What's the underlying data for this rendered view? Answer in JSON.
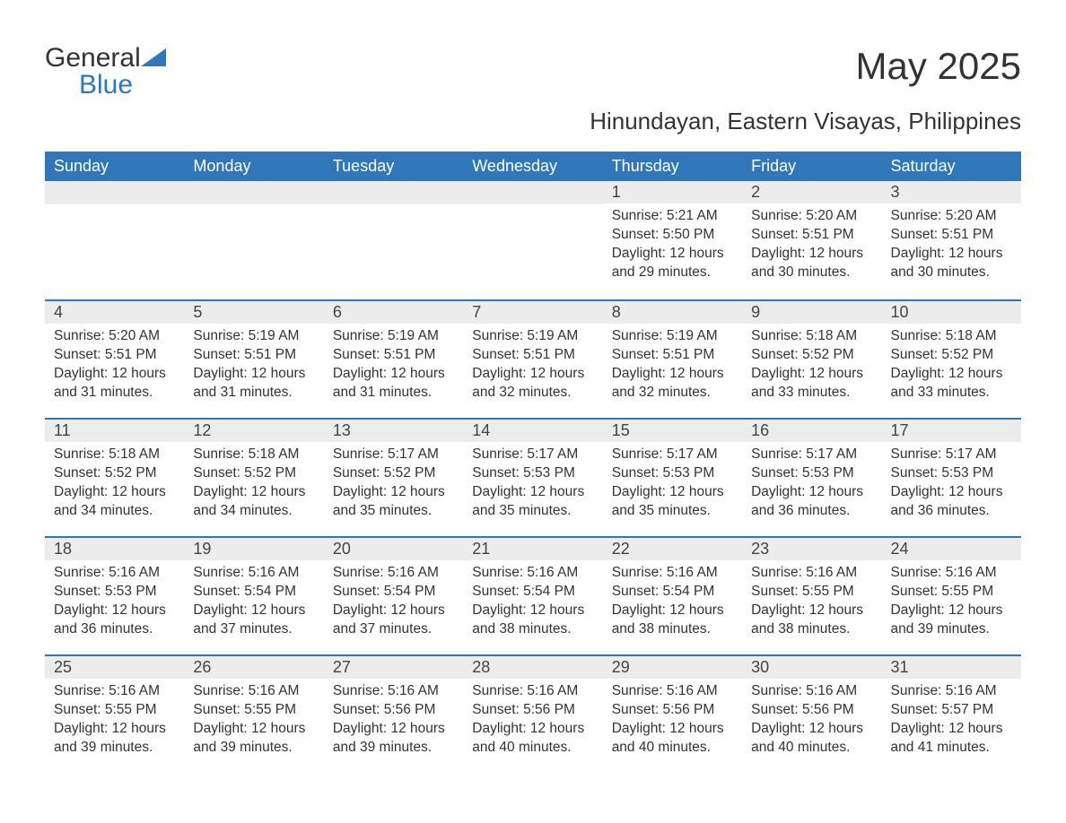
{
  "brand": {
    "name_part1": "General",
    "name_part2": "Blue",
    "icon_color": "#2f77b9"
  },
  "header": {
    "title": "May 2025",
    "location": "Hinundayan, Eastern Visayas, Philippines"
  },
  "colors": {
    "header_bg": "#2f77b9",
    "header_text": "#ffffff",
    "daybar_bg": "#ececec",
    "daybar_border": "#2f77b9",
    "body_text": "#333333",
    "page_bg": "#ffffff"
  },
  "calendar": {
    "day_headers": [
      "Sunday",
      "Monday",
      "Tuesday",
      "Wednesday",
      "Thursday",
      "Friday",
      "Saturday"
    ],
    "weeks": [
      [
        null,
        null,
        null,
        null,
        {
          "n": "1",
          "sunrise": "Sunrise: 5:21 AM",
          "sunset": "Sunset: 5:50 PM",
          "daylight1": "Daylight: 12 hours",
          "daylight2": "and 29 minutes."
        },
        {
          "n": "2",
          "sunrise": "Sunrise: 5:20 AM",
          "sunset": "Sunset: 5:51 PM",
          "daylight1": "Daylight: 12 hours",
          "daylight2": "and 30 minutes."
        },
        {
          "n": "3",
          "sunrise": "Sunrise: 5:20 AM",
          "sunset": "Sunset: 5:51 PM",
          "daylight1": "Daylight: 12 hours",
          "daylight2": "and 30 minutes."
        }
      ],
      [
        {
          "n": "4",
          "sunrise": "Sunrise: 5:20 AM",
          "sunset": "Sunset: 5:51 PM",
          "daylight1": "Daylight: 12 hours",
          "daylight2": "and 31 minutes."
        },
        {
          "n": "5",
          "sunrise": "Sunrise: 5:19 AM",
          "sunset": "Sunset: 5:51 PM",
          "daylight1": "Daylight: 12 hours",
          "daylight2": "and 31 minutes."
        },
        {
          "n": "6",
          "sunrise": "Sunrise: 5:19 AM",
          "sunset": "Sunset: 5:51 PM",
          "daylight1": "Daylight: 12 hours",
          "daylight2": "and 31 minutes."
        },
        {
          "n": "7",
          "sunrise": "Sunrise: 5:19 AM",
          "sunset": "Sunset: 5:51 PM",
          "daylight1": "Daylight: 12 hours",
          "daylight2": "and 32 minutes."
        },
        {
          "n": "8",
          "sunrise": "Sunrise: 5:19 AM",
          "sunset": "Sunset: 5:51 PM",
          "daylight1": "Daylight: 12 hours",
          "daylight2": "and 32 minutes."
        },
        {
          "n": "9",
          "sunrise": "Sunrise: 5:18 AM",
          "sunset": "Sunset: 5:52 PM",
          "daylight1": "Daylight: 12 hours",
          "daylight2": "and 33 minutes."
        },
        {
          "n": "10",
          "sunrise": "Sunrise: 5:18 AM",
          "sunset": "Sunset: 5:52 PM",
          "daylight1": "Daylight: 12 hours",
          "daylight2": "and 33 minutes."
        }
      ],
      [
        {
          "n": "11",
          "sunrise": "Sunrise: 5:18 AM",
          "sunset": "Sunset: 5:52 PM",
          "daylight1": "Daylight: 12 hours",
          "daylight2": "and 34 minutes."
        },
        {
          "n": "12",
          "sunrise": "Sunrise: 5:18 AM",
          "sunset": "Sunset: 5:52 PM",
          "daylight1": "Daylight: 12 hours",
          "daylight2": "and 34 minutes."
        },
        {
          "n": "13",
          "sunrise": "Sunrise: 5:17 AM",
          "sunset": "Sunset: 5:52 PM",
          "daylight1": "Daylight: 12 hours",
          "daylight2": "and 35 minutes."
        },
        {
          "n": "14",
          "sunrise": "Sunrise: 5:17 AM",
          "sunset": "Sunset: 5:53 PM",
          "daylight1": "Daylight: 12 hours",
          "daylight2": "and 35 minutes."
        },
        {
          "n": "15",
          "sunrise": "Sunrise: 5:17 AM",
          "sunset": "Sunset: 5:53 PM",
          "daylight1": "Daylight: 12 hours",
          "daylight2": "and 35 minutes."
        },
        {
          "n": "16",
          "sunrise": "Sunrise: 5:17 AM",
          "sunset": "Sunset: 5:53 PM",
          "daylight1": "Daylight: 12 hours",
          "daylight2": "and 36 minutes."
        },
        {
          "n": "17",
          "sunrise": "Sunrise: 5:17 AM",
          "sunset": "Sunset: 5:53 PM",
          "daylight1": "Daylight: 12 hours",
          "daylight2": "and 36 minutes."
        }
      ],
      [
        {
          "n": "18",
          "sunrise": "Sunrise: 5:16 AM",
          "sunset": "Sunset: 5:53 PM",
          "daylight1": "Daylight: 12 hours",
          "daylight2": "and 36 minutes."
        },
        {
          "n": "19",
          "sunrise": "Sunrise: 5:16 AM",
          "sunset": "Sunset: 5:54 PM",
          "daylight1": "Daylight: 12 hours",
          "daylight2": "and 37 minutes."
        },
        {
          "n": "20",
          "sunrise": "Sunrise: 5:16 AM",
          "sunset": "Sunset: 5:54 PM",
          "daylight1": "Daylight: 12 hours",
          "daylight2": "and 37 minutes."
        },
        {
          "n": "21",
          "sunrise": "Sunrise: 5:16 AM",
          "sunset": "Sunset: 5:54 PM",
          "daylight1": "Daylight: 12 hours",
          "daylight2": "and 38 minutes."
        },
        {
          "n": "22",
          "sunrise": "Sunrise: 5:16 AM",
          "sunset": "Sunset: 5:54 PM",
          "daylight1": "Daylight: 12 hours",
          "daylight2": "and 38 minutes."
        },
        {
          "n": "23",
          "sunrise": "Sunrise: 5:16 AM",
          "sunset": "Sunset: 5:55 PM",
          "daylight1": "Daylight: 12 hours",
          "daylight2": "and 38 minutes."
        },
        {
          "n": "24",
          "sunrise": "Sunrise: 5:16 AM",
          "sunset": "Sunset: 5:55 PM",
          "daylight1": "Daylight: 12 hours",
          "daylight2": "and 39 minutes."
        }
      ],
      [
        {
          "n": "25",
          "sunrise": "Sunrise: 5:16 AM",
          "sunset": "Sunset: 5:55 PM",
          "daylight1": "Daylight: 12 hours",
          "daylight2": "and 39 minutes."
        },
        {
          "n": "26",
          "sunrise": "Sunrise: 5:16 AM",
          "sunset": "Sunset: 5:55 PM",
          "daylight1": "Daylight: 12 hours",
          "daylight2": "and 39 minutes."
        },
        {
          "n": "27",
          "sunrise": "Sunrise: 5:16 AM",
          "sunset": "Sunset: 5:56 PM",
          "daylight1": "Daylight: 12 hours",
          "daylight2": "and 39 minutes."
        },
        {
          "n": "28",
          "sunrise": "Sunrise: 5:16 AM",
          "sunset": "Sunset: 5:56 PM",
          "daylight1": "Daylight: 12 hours",
          "daylight2": "and 40 minutes."
        },
        {
          "n": "29",
          "sunrise": "Sunrise: 5:16 AM",
          "sunset": "Sunset: 5:56 PM",
          "daylight1": "Daylight: 12 hours",
          "daylight2": "and 40 minutes."
        },
        {
          "n": "30",
          "sunrise": "Sunrise: 5:16 AM",
          "sunset": "Sunset: 5:56 PM",
          "daylight1": "Daylight: 12 hours",
          "daylight2": "and 40 minutes."
        },
        {
          "n": "31",
          "sunrise": "Sunrise: 5:16 AM",
          "sunset": "Sunset: 5:57 PM",
          "daylight1": "Daylight: 12 hours",
          "daylight2": "and 41 minutes."
        }
      ]
    ]
  }
}
